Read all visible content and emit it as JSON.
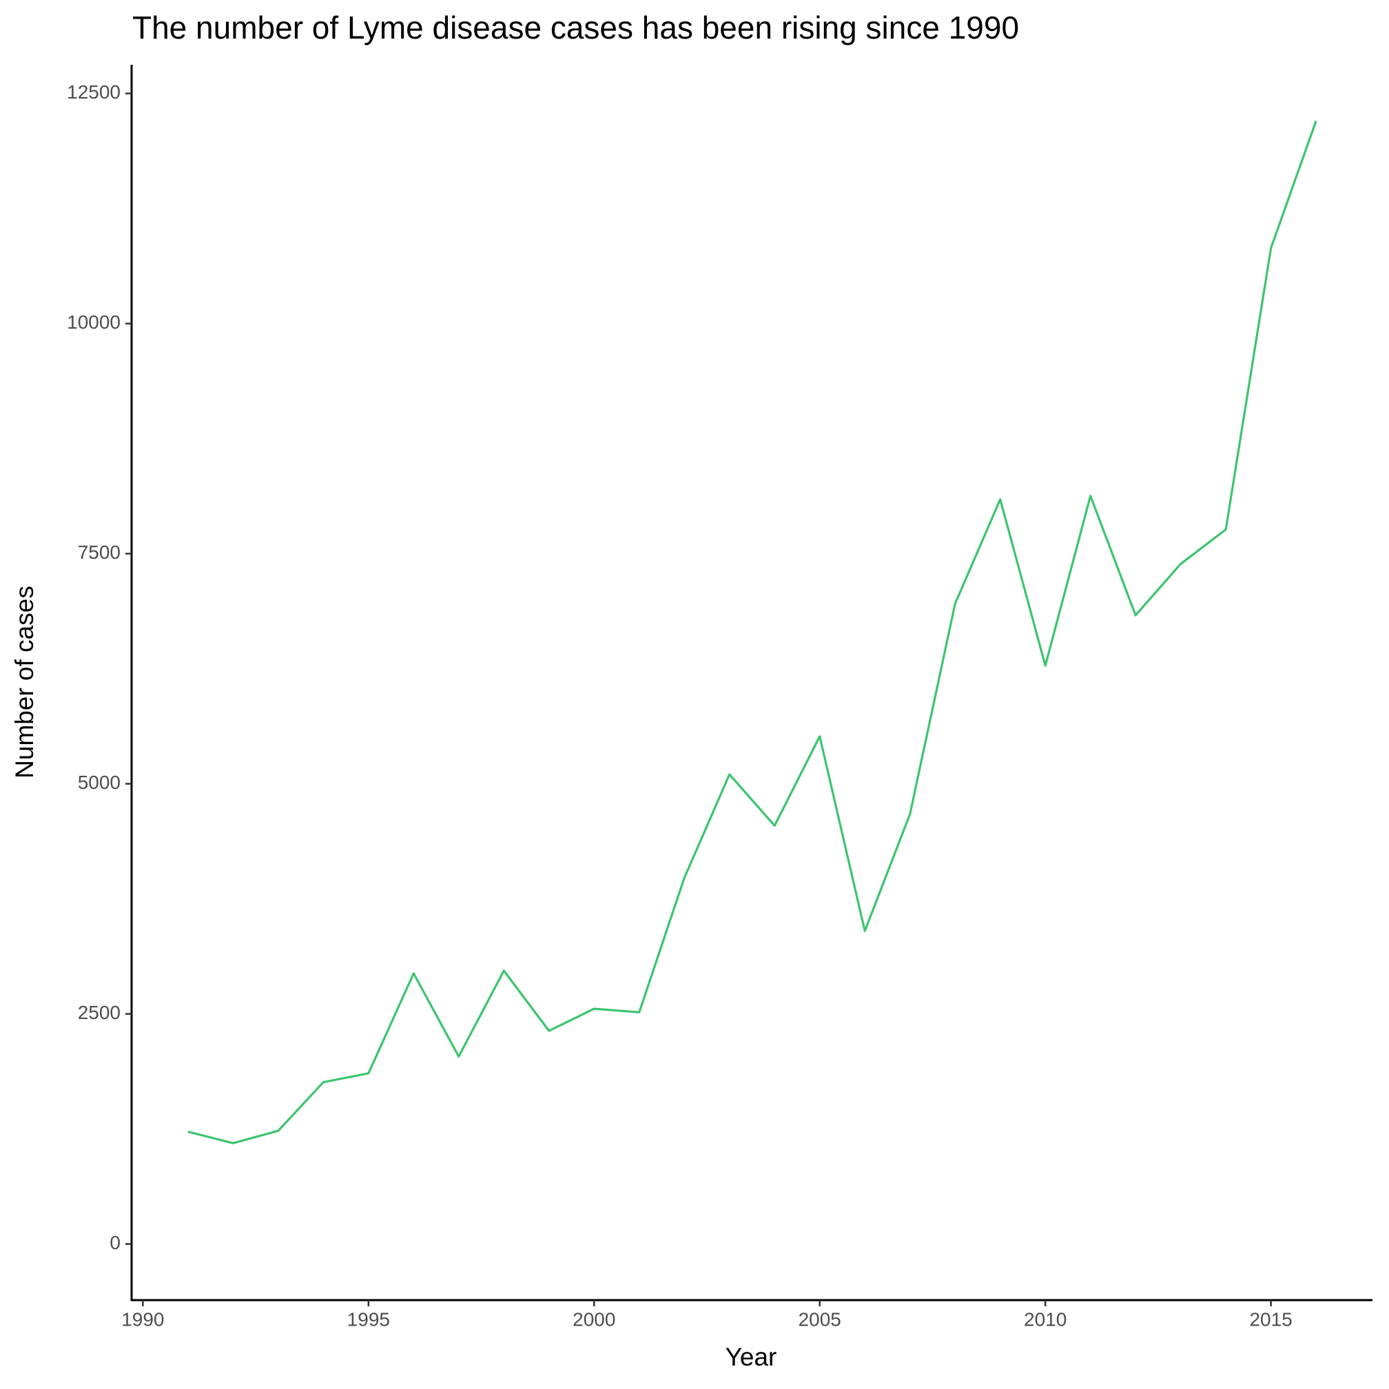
{
  "chart_data": {
    "type": "line",
    "title": "The number of Lyme disease cases has been rising since 1990",
    "x_label": "Year",
    "y_label": "Number of cases",
    "x": [
      1991,
      1992,
      1993,
      1994,
      1995,
      1996,
      1997,
      1998,
      1999,
      2000,
      2001,
      2002,
      2003,
      2004,
      2005,
      2006,
      2007,
      2008,
      2009,
      2010,
      2011,
      2012,
      2013,
      2014,
      2015,
      2016
    ],
    "series": [
      {
        "name": "Cases",
        "color": "#3cc46e",
        "values": [
          1220,
          1095,
          1230,
          1758,
          1854,
          2940,
          2037,
          2969,
          2316,
          2556,
          2517,
          3978,
          5102,
          4545,
          5515,
          3401,
          4670,
          6956,
          8090,
          6284,
          8128,
          6831,
          7389,
          7763,
          10819,
          12202
        ]
      }
    ],
    "xlim": [
      1989.75,
      2017.25
    ],
    "xticks": [
      1990,
      1995,
      2000,
      2005,
      2010,
      2015
    ],
    "ylim": [
      -610,
      12812
    ],
    "yticks": [
      0,
      2500,
      5000,
      7500,
      10000,
      12500
    ],
    "grid": false
  }
}
